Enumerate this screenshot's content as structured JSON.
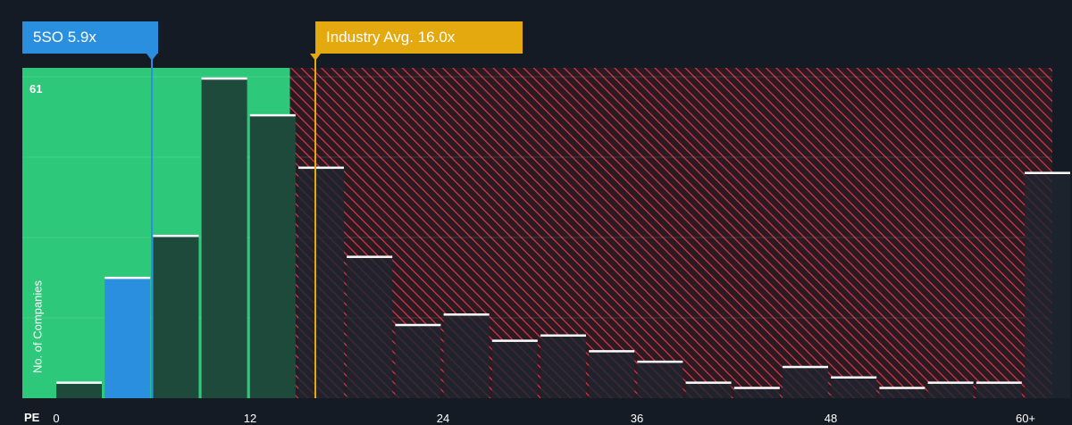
{
  "company_tag": {
    "label": "5SO 5.9x",
    "value": 5.9,
    "color": "#2b8fe0"
  },
  "industry_tag": {
    "label": "Industry Avg. 16.0x",
    "value": 16.0,
    "color": "#e5a910"
  },
  "y_max_label": "61",
  "y_axis_title": "No. of Companies",
  "x_axis_prefix": "PE",
  "colors": {
    "background": "#151b24",
    "fair_zone": "#2ec87a",
    "overvalued_zone": "#e03c4a",
    "bar_fair": "#1e4a3c",
    "bar_over": "#1f2530",
    "bar_highlight": "#2b8fe0",
    "bar_top": "#ffffff"
  },
  "chart_data": {
    "type": "bar",
    "x_tick_labels": [
      "0",
      "12",
      "24",
      "36",
      "48",
      "60+"
    ],
    "x_ticks": [
      0,
      12,
      24,
      36,
      48,
      60
    ],
    "xlim": [
      -1,
      61.5
    ],
    "ylim": [
      0,
      63
    ],
    "highlight_bin_index": 1,
    "fair_upper_bound": 16.0,
    "bins": [
      {
        "from": 0,
        "to": 3,
        "count": 3
      },
      {
        "from": 3,
        "to": 6,
        "count": 23
      },
      {
        "from": 6,
        "to": 9,
        "count": 31
      },
      {
        "from": 9,
        "to": 12,
        "count": 61
      },
      {
        "from": 12,
        "to": 15,
        "count": 54
      },
      {
        "from": 15,
        "to": 18,
        "count": 44
      },
      {
        "from": 18,
        "to": 21,
        "count": 27
      },
      {
        "from": 21,
        "to": 24,
        "count": 14
      },
      {
        "from": 24,
        "to": 27,
        "count": 16
      },
      {
        "from": 27,
        "to": 30,
        "count": 11
      },
      {
        "from": 30,
        "to": 33,
        "count": 12
      },
      {
        "from": 33,
        "to": 36,
        "count": 9
      },
      {
        "from": 36,
        "to": 39,
        "count": 7
      },
      {
        "from": 39,
        "to": 42,
        "count": 3
      },
      {
        "from": 42,
        "to": 45,
        "count": 2
      },
      {
        "from": 45,
        "to": 48,
        "count": 6
      },
      {
        "from": 48,
        "to": 51,
        "count": 4
      },
      {
        "from": 51,
        "to": 54,
        "count": 2
      },
      {
        "from": 54,
        "to": 57,
        "count": 3
      },
      {
        "from": 57,
        "to": 60,
        "count": 3
      },
      {
        "from": 60,
        "to": 63,
        "count": 43
      }
    ]
  }
}
